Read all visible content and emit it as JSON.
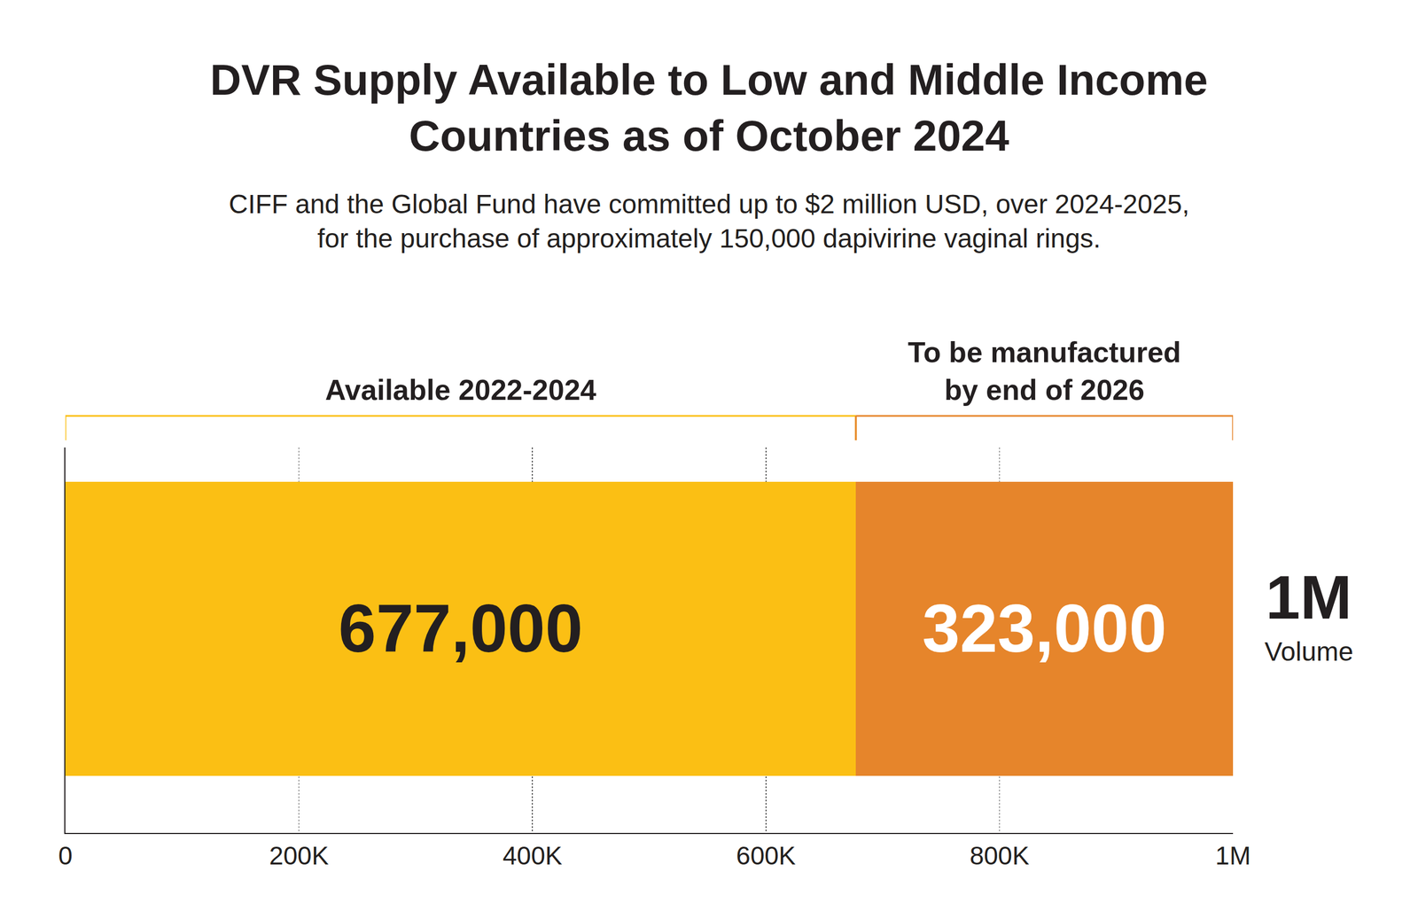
{
  "chart_data": {
    "type": "bar",
    "orientation": "horizontal",
    "stacked": true,
    "title": "DVR Supply Available to Low and Middle Income Countries as of October 2024",
    "subtitle": "CIFF and the Global Fund have committed up to $2 million USD, over 2024-2025, for the purchase of approximately 150,000 dapivirine vaginal rings.",
    "categories": [
      null
    ],
    "series": [
      {
        "name": "Available 2022-2024",
        "color": "#FBBF14",
        "values": [
          677000
        ],
        "value_labels": [
          "677,000"
        ]
      },
      {
        "name": "To be manufactured by end of 2026",
        "color": "#E6852B",
        "values": [
          323000
        ],
        "value_labels": [
          "323,000"
        ]
      }
    ],
    "xlim": [
      0,
      1000000
    ],
    "xticks": [
      0,
      {
        "value": 200000,
        "label": "200K"
      },
      {
        "value": 400000,
        "label": "400K"
      },
      {
        "value": 600000,
        "label": "600K"
      },
      {
        "value": 800000,
        "label": "800K"
      },
      {
        "value": 1000000,
        "label": "1M"
      }
    ],
    "grid": true,
    "data_labels": true,
    "tick_labels": "x",
    "annotations": [
      "1M",
      "Volume"
    ]
  }
}
